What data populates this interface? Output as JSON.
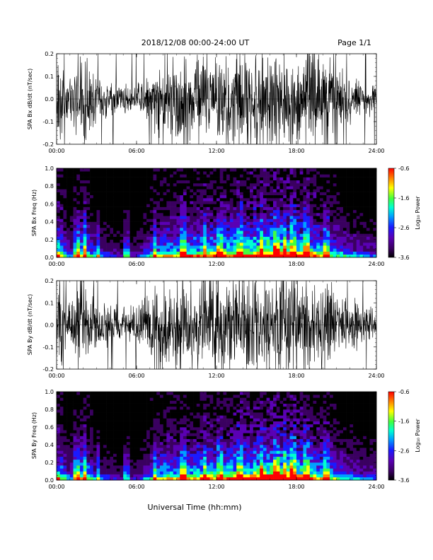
{
  "header": {
    "title": "2018/12/08  00:00-24:00 UT",
    "page": "Page 1/1"
  },
  "footer": {
    "xlabel": "Universal Time (hh:mm)"
  },
  "colors": {
    "trace": "#000000",
    "background": "#ffffff",
    "colormap": [
      "#000000",
      "#3a0060",
      "#5a00b4",
      "#1a1aff",
      "#00a0ff",
      "#00ffd0",
      "#40ff40",
      "#ffff00",
      "#ff8000",
      "#ff0000"
    ]
  },
  "chart_data": [
    {
      "type": "line",
      "ylabel": "SPA Bx dB/dt (nT/sec)",
      "xticks": [
        "00:00",
        "06:00",
        "12:00",
        "18:00",
        "24:00"
      ],
      "yticks": [
        "-0.2",
        "-0.1",
        "0.0",
        "0.1",
        "0.2"
      ],
      "xlim": [
        0,
        24
      ],
      "ylim": [
        -0.2,
        0.2
      ],
      "grid": false,
      "amplitude_envelope": {
        "x": [
          0,
          1,
          2,
          3,
          4,
          5,
          6,
          7,
          8,
          9,
          10,
          11,
          12,
          13,
          14,
          15,
          16,
          17,
          18,
          19,
          20,
          21,
          22,
          23,
          24
        ],
        "y": [
          0.2,
          0.08,
          0.2,
          0.1,
          0.07,
          0.07,
          0.06,
          0.12,
          0.2,
          0.2,
          0.2,
          0.2,
          0.2,
          0.2,
          0.2,
          0.2,
          0.2,
          0.2,
          0.2,
          0.2,
          0.2,
          0.14,
          0.1,
          0.07,
          0.06
        ]
      }
    },
    {
      "type": "heatmap",
      "ylabel": "SPA Bx Freq (Hz)",
      "xticks": [
        "00:00",
        "06:00",
        "12:00",
        "18:00",
        "24:00"
      ],
      "yticks": [
        "0.0",
        "0.2",
        "0.4",
        "0.6",
        "0.8",
        "1.0"
      ],
      "xlim": [
        0,
        24
      ],
      "ylim": [
        0,
        1.0
      ],
      "colorbar": {
        "label": "Log₁₀ Power",
        "ticks": [
          "-0.6",
          "-1.6",
          "-2.6",
          "-3.6"
        ],
        "range": [
          -3.6,
          -0.6
        ]
      }
    },
    {
      "type": "line",
      "ylabel": "SPA By dB/dt (nT/sec)",
      "xticks": [
        "00:00",
        "06:00",
        "12:00",
        "18:00",
        "24:00"
      ],
      "yticks": [
        "-0.2",
        "-0.1",
        "0.0",
        "0.1",
        "0.2"
      ],
      "xlim": [
        0,
        24
      ],
      "ylim": [
        -0.2,
        0.2
      ],
      "grid": false,
      "amplitude_envelope": {
        "x": [
          0,
          1,
          2,
          3,
          4,
          5,
          6,
          7,
          8,
          9,
          10,
          11,
          12,
          13,
          14,
          15,
          16,
          17,
          18,
          19,
          20,
          21,
          22,
          23,
          24
        ],
        "y": [
          0.2,
          0.1,
          0.2,
          0.12,
          0.09,
          0.08,
          0.08,
          0.14,
          0.2,
          0.2,
          0.2,
          0.2,
          0.2,
          0.2,
          0.2,
          0.2,
          0.2,
          0.2,
          0.2,
          0.2,
          0.2,
          0.15,
          0.12,
          0.09,
          0.07
        ]
      }
    },
    {
      "type": "heatmap",
      "ylabel": "SPA By Freq (Hz)",
      "xticks": [
        "00:00",
        "06:00",
        "12:00",
        "18:00",
        "24:00"
      ],
      "yticks": [
        "0.0",
        "0.2",
        "0.4",
        "0.6",
        "0.8",
        "1.0"
      ],
      "xlim": [
        0,
        24
      ],
      "ylim": [
        0,
        1.0
      ],
      "colorbar": {
        "label": "Log₁₀ Power",
        "ticks": [
          "-0.6",
          "-1.6",
          "-2.6",
          "-3.6"
        ],
        "range": [
          -3.6,
          -0.6
        ]
      }
    }
  ]
}
